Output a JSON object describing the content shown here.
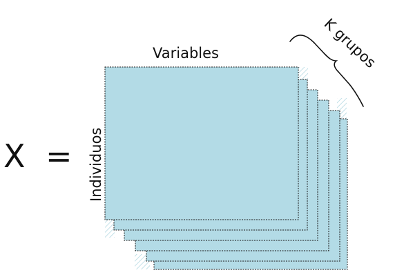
{
  "diagram": {
    "matrix_symbol": "X",
    "equals_sign": "=",
    "columns_label": "Variables",
    "rows_label": "Individuos",
    "groups_label": "K grupos",
    "sheet_count": 6,
    "sheet_fill": "#b3dbe6",
    "stroke_color": "#1a1a1a"
  }
}
